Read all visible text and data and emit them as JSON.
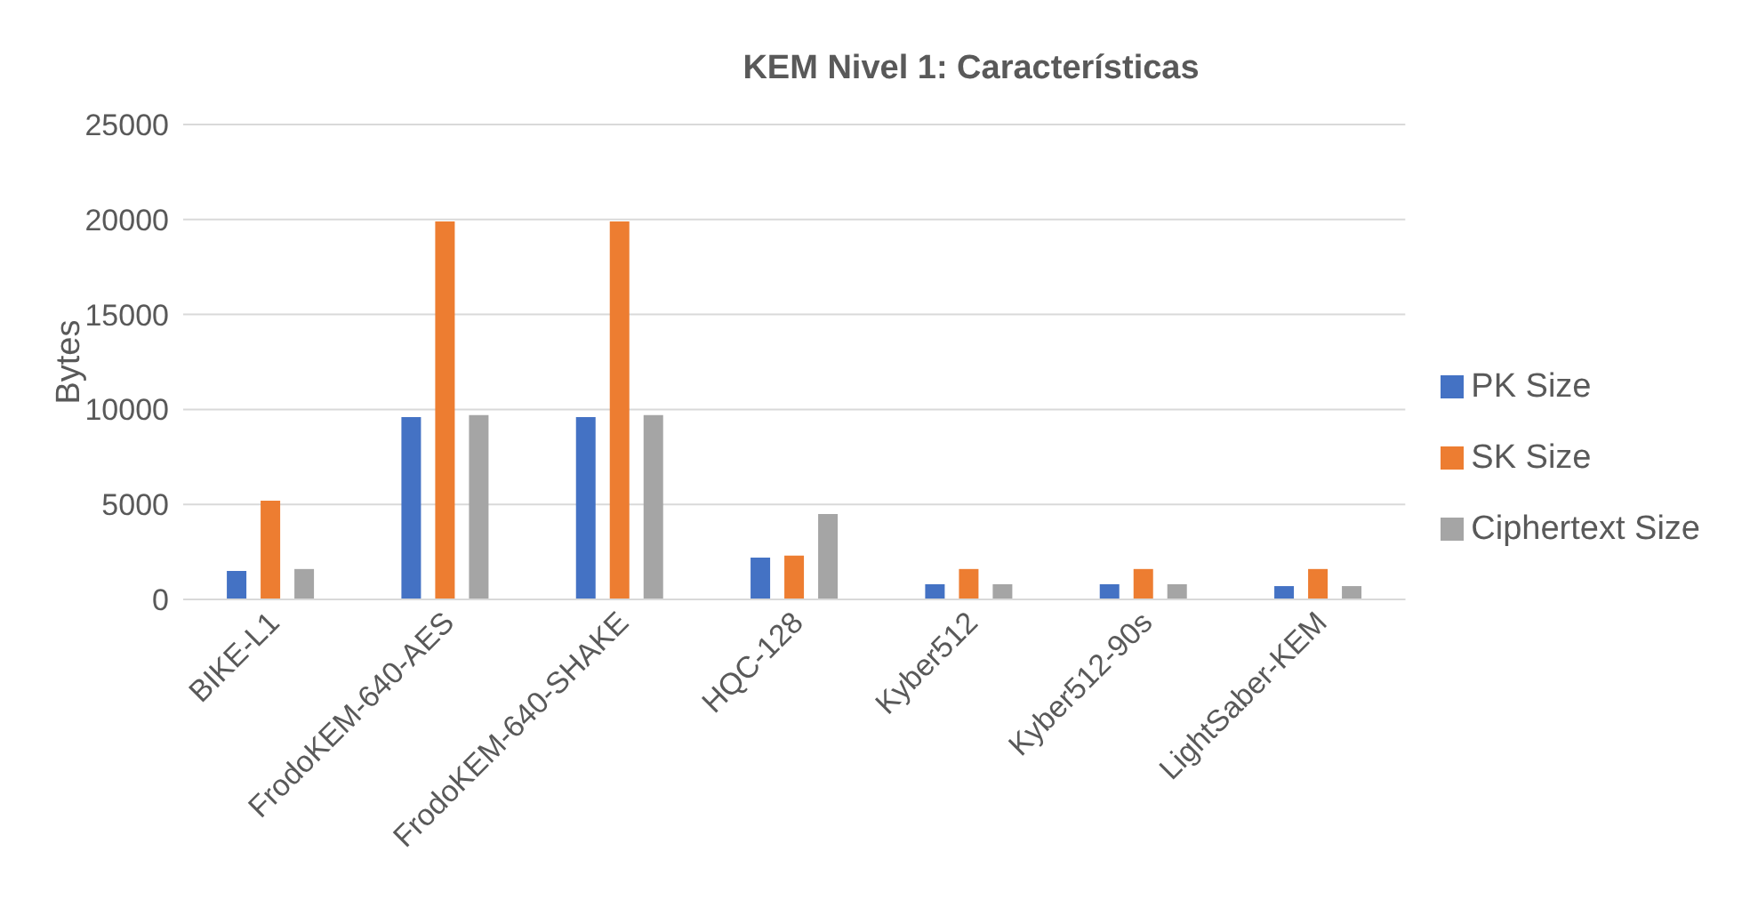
{
  "chart_data": {
    "type": "bar",
    "title": "KEM Nivel 1: Características",
    "ylabel": "Bytes",
    "categories": [
      "BIKE-L1",
      "FrodoKEM-640-AES",
      "FrodoKEM-640-SHAKE",
      "HQC-128",
      "Kyber512",
      "Kyber512-90s",
      "LightSaber-KEM"
    ],
    "series": [
      {
        "name": "PK Size",
        "color": "#4472c4",
        "values": [
          1500,
          9600,
          9600,
          2200,
          800,
          800,
          700
        ]
      },
      {
        "name": "SK Size",
        "color": "#ed7d31",
        "values": [
          5200,
          19900,
          19900,
          2300,
          1600,
          1600,
          1600
        ]
      },
      {
        "name": "Ciphertext Size",
        "color": "#a5a5a5",
        "values": [
          1600,
          9700,
          9700,
          4500,
          800,
          800,
          700
        ]
      }
    ],
    "ylim": [
      0,
      25000
    ],
    "yticks": [
      0,
      5000,
      10000,
      15000,
      20000,
      25000
    ],
    "grid": "y",
    "legend": "right"
  }
}
